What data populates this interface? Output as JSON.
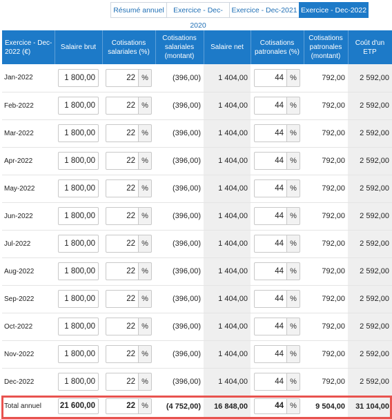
{
  "tabs": [
    {
      "label": "Résumé annuel",
      "active": false
    },
    {
      "label": "Exercice - Dec-2020",
      "active": false
    },
    {
      "label": "Exercice - Dec-2021",
      "active": false
    },
    {
      "label": "Exercice - Dec-2022",
      "active": true
    }
  ],
  "table": {
    "headers": {
      "period": "Exercice - Dec-2022 (€)",
      "salaire_brut": "Salaire brut",
      "cot_sal_pct": "Cotisations salariales (%)",
      "cot_sal_montant": "Cotisations salariales (montant)",
      "salaire_net": "Salaire net",
      "cot_pat_pct": "Cotisations patronales (%)",
      "cot_pat_montant": "Cotisations patronales (montant)",
      "cout_etp": "Coût d'un ETP"
    },
    "percent_symbol": "%",
    "rows": [
      {
        "month": "Jan-2022",
        "brut": "1 800,00",
        "sal_pct": "22",
        "sal_amt": "(396,00)",
        "net": "1 404,00",
        "pat_pct": "44",
        "pat_amt": "792,00",
        "cout": "2 592,00"
      },
      {
        "month": "Feb-2022",
        "brut": "1 800,00",
        "sal_pct": "22",
        "sal_amt": "(396,00)",
        "net": "1 404,00",
        "pat_pct": "44",
        "pat_amt": "792,00",
        "cout": "2 592,00"
      },
      {
        "month": "Mar-2022",
        "brut": "1 800,00",
        "sal_pct": "22",
        "sal_amt": "(396,00)",
        "net": "1 404,00",
        "pat_pct": "44",
        "pat_amt": "792,00",
        "cout": "2 592,00"
      },
      {
        "month": "Apr-2022",
        "brut": "1 800,00",
        "sal_pct": "22",
        "sal_amt": "(396,00)",
        "net": "1 404,00",
        "pat_pct": "44",
        "pat_amt": "792,00",
        "cout": "2 592,00"
      },
      {
        "month": "May-2022",
        "brut": "1 800,00",
        "sal_pct": "22",
        "sal_amt": "(396,00)",
        "net": "1 404,00",
        "pat_pct": "44",
        "pat_amt": "792,00",
        "cout": "2 592,00"
      },
      {
        "month": "Jun-2022",
        "brut": "1 800,00",
        "sal_pct": "22",
        "sal_amt": "(396,00)",
        "net": "1 404,00",
        "pat_pct": "44",
        "pat_amt": "792,00",
        "cout": "2 592,00"
      },
      {
        "month": "Jul-2022",
        "brut": "1 800,00",
        "sal_pct": "22",
        "sal_amt": "(396,00)",
        "net": "1 404,00",
        "pat_pct": "44",
        "pat_amt": "792,00",
        "cout": "2 592,00"
      },
      {
        "month": "Aug-2022",
        "brut": "1 800,00",
        "sal_pct": "22",
        "sal_amt": "(396,00)",
        "net": "1 404,00",
        "pat_pct": "44",
        "pat_amt": "792,00",
        "cout": "2 592,00"
      },
      {
        "month": "Sep-2022",
        "brut": "1 800,00",
        "sal_pct": "22",
        "sal_amt": "(396,00)",
        "net": "1 404,00",
        "pat_pct": "44",
        "pat_amt": "792,00",
        "cout": "2 592,00"
      },
      {
        "month": "Oct-2022",
        "brut": "1 800,00",
        "sal_pct": "22",
        "sal_amt": "(396,00)",
        "net": "1 404,00",
        "pat_pct": "44",
        "pat_amt": "792,00",
        "cout": "2 592,00"
      },
      {
        "month": "Nov-2022",
        "brut": "1 800,00",
        "sal_pct": "22",
        "sal_amt": "(396,00)",
        "net": "1 404,00",
        "pat_pct": "44",
        "pat_amt": "792,00",
        "cout": "2 592,00"
      },
      {
        "month": "Dec-2022",
        "brut": "1 800,00",
        "sal_pct": "22",
        "sal_amt": "(396,00)",
        "net": "1 404,00",
        "pat_pct": "44",
        "pat_amt": "792,00",
        "cout": "2 592,00"
      }
    ],
    "total": {
      "label": "Total annuel",
      "brut": "21 600,00",
      "sal_pct": "22",
      "sal_amt": "(4 752,00)",
      "net": "16 848,00",
      "pat_pct": "44",
      "pat_amt": "9 504,00",
      "cout": "31 104,00"
    }
  },
  "colors": {
    "header_bg": "#1d7ac8",
    "tab_link": "#1f6fb5",
    "total_outline": "#e8534f",
    "gray_cell": "#efefef"
  }
}
